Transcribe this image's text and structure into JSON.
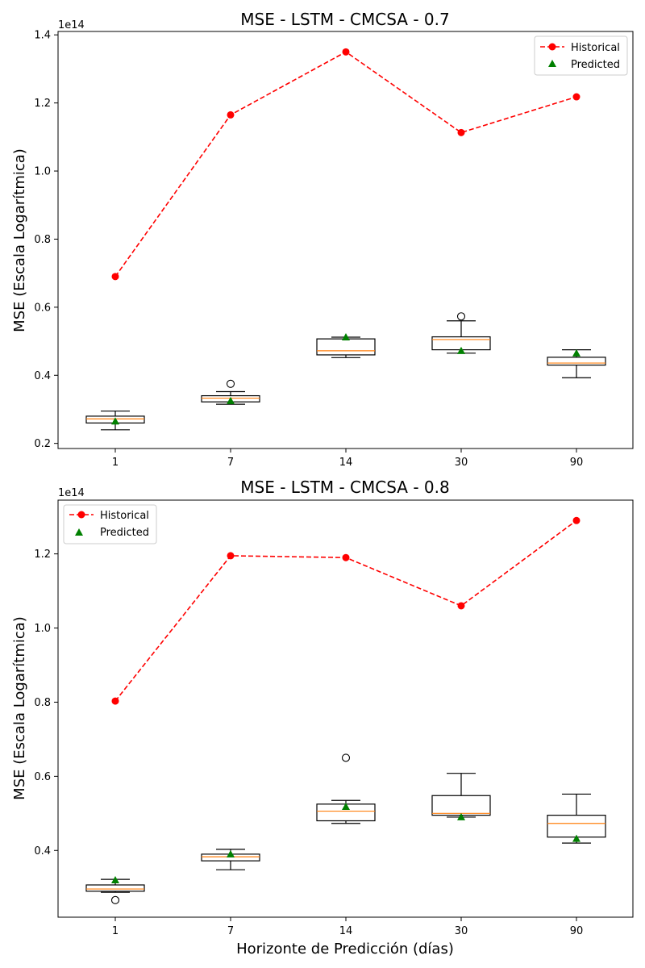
{
  "chart_data": [
    {
      "type": "boxplot+line",
      "title": "MSE - LSTM - CMCSA - 0.7",
      "ylabel": "MSE (Escala Logarítmica)",
      "xlabel": "",
      "offset_label": "1e14",
      "categories": [
        "1",
        "7",
        "14",
        "30",
        "90"
      ],
      "ylim": [
        0.185,
        1.41
      ],
      "yticks": [
        0.2,
        0.4,
        0.6,
        0.8,
        1.0,
        1.2,
        1.4
      ],
      "legend_position": "upper right",
      "legend": [
        "Historical",
        "Predicted"
      ],
      "historical": [
        0.69,
        1.165,
        1.35,
        1.113,
        1.218
      ],
      "predicted": [
        0.265,
        0.325,
        0.512,
        0.472,
        0.465
      ],
      "boxes": [
        {
          "whislo": 0.24,
          "q1": 0.26,
          "med": 0.272,
          "q3": 0.28,
          "whishi": 0.295,
          "fliers": []
        },
        {
          "whislo": 0.315,
          "q1": 0.322,
          "med": 0.333,
          "q3": 0.34,
          "whishi": 0.352,
          "fliers": [
            0.375
          ]
        },
        {
          "whislo": 0.452,
          "q1": 0.46,
          "med": 0.472,
          "q3": 0.507,
          "whishi": 0.512,
          "fliers": []
        },
        {
          "whislo": 0.465,
          "q1": 0.475,
          "med": 0.505,
          "q3": 0.513,
          "whishi": 0.56,
          "fliers": [
            0.573
          ]
        },
        {
          "whislo": 0.393,
          "q1": 0.43,
          "med": 0.436,
          "q3": 0.453,
          "whishi": 0.475,
          "fliers": []
        }
      ]
    },
    {
      "type": "boxplot+line",
      "title": "MSE - LSTM - CMCSA - 0.8",
      "ylabel": "MSE (Escala Logarítmica)",
      "xlabel": "Horizonte de Predicción (días)",
      "offset_label": "1e14",
      "categories": [
        "1",
        "7",
        "14",
        "30",
        "90"
      ],
      "ylim": [
        0.22,
        1.345
      ],
      "yticks": [
        0.4,
        0.6,
        0.8,
        1.0,
        1.2
      ],
      "legend_position": "upper left",
      "legend": [
        "Historical",
        "Predicted"
      ],
      "historical": [
        0.803,
        1.195,
        1.19,
        1.06,
        1.29
      ],
      "predicted": [
        0.32,
        0.39,
        0.518,
        0.49,
        0.432
      ],
      "boxes": [
        {
          "whislo": 0.287,
          "q1": 0.29,
          "med": 0.296,
          "q3": 0.307,
          "whishi": 0.322,
          "fliers": [
            0.266
          ]
        },
        {
          "whislo": 0.348,
          "q1": 0.372,
          "med": 0.383,
          "q3": 0.39,
          "whishi": 0.403,
          "fliers": []
        },
        {
          "whislo": 0.473,
          "q1": 0.48,
          "med": 0.506,
          "q3": 0.525,
          "whishi": 0.535,
          "fliers": [
            0.65
          ]
        },
        {
          "whislo": 0.49,
          "q1": 0.495,
          "med": 0.5,
          "q3": 0.548,
          "whishi": 0.608,
          "fliers": []
        },
        {
          "whislo": 0.42,
          "q1": 0.436,
          "med": 0.473,
          "q3": 0.495,
          "whishi": 0.552,
          "fliers": []
        }
      ]
    }
  ]
}
